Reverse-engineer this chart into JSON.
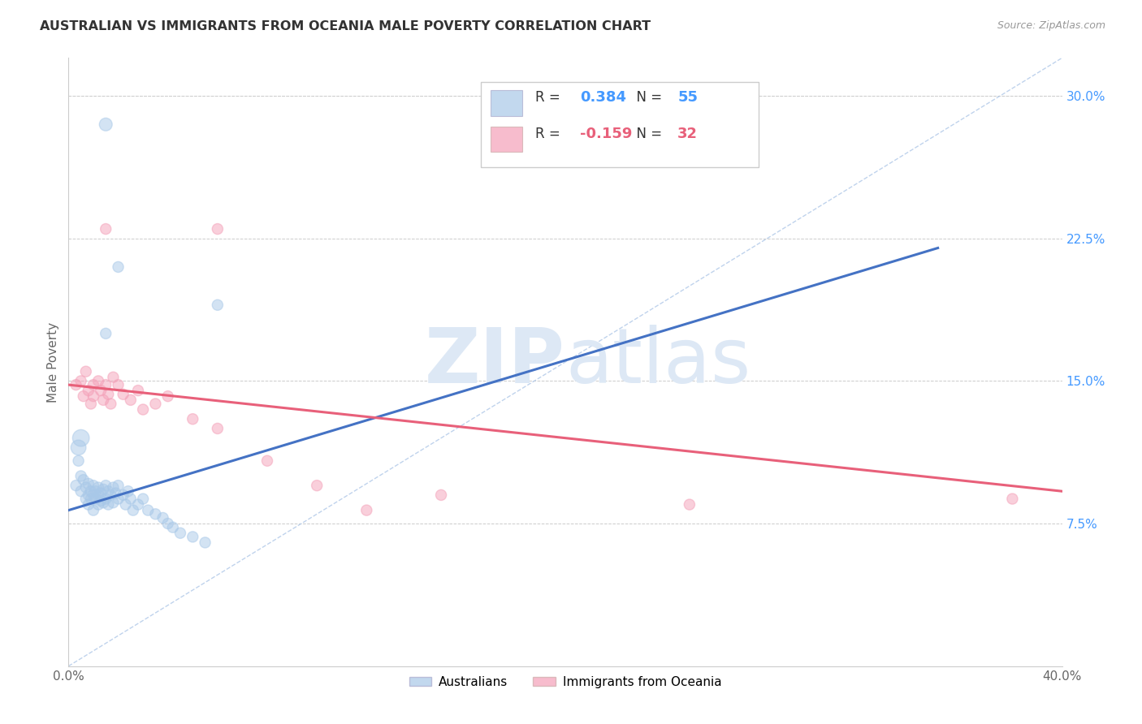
{
  "title": "AUSTRALIAN VS IMMIGRANTS FROM OCEANIA MALE POVERTY CORRELATION CHART",
  "source": "Source: ZipAtlas.com",
  "ylabel": "Male Poverty",
  "xlim": [
    0.0,
    0.4
  ],
  "ylim": [
    0.0,
    0.32
  ],
  "yticks_right": [
    0.075,
    0.15,
    0.225,
    0.3
  ],
  "yticklabels_right": [
    "7.5%",
    "15.0%",
    "22.5%",
    "30.0%"
  ],
  "legend_blue_r": "0.384",
  "legend_blue_n": "55",
  "legend_pink_r": "-0.159",
  "legend_pink_n": "32",
  "legend_label_blue": "Australians",
  "legend_label_pink": "Immigrants from Oceania",
  "blue_color": "#a8c8e8",
  "pink_color": "#f4a0b8",
  "trendline_blue_color": "#4472c4",
  "trendline_pink_color": "#e8607a",
  "diagonal_color": "#b0c8e8",
  "watermark_zip": "ZIP",
  "watermark_atlas": "atlas",
  "blue_scatter": [
    [
      0.003,
      0.095
    ],
    [
      0.005,
      0.1
    ],
    [
      0.005,
      0.092
    ],
    [
      0.006,
      0.098
    ],
    [
      0.007,
      0.088
    ],
    [
      0.007,
      0.094
    ],
    [
      0.008,
      0.09
    ],
    [
      0.008,
      0.096
    ],
    [
      0.008,
      0.085
    ],
    [
      0.009,
      0.092
    ],
    [
      0.009,
      0.088
    ],
    [
      0.01,
      0.095
    ],
    [
      0.01,
      0.09
    ],
    [
      0.01,
      0.082
    ],
    [
      0.011,
      0.092
    ],
    [
      0.011,
      0.088
    ],
    [
      0.012,
      0.094
    ],
    [
      0.012,
      0.09
    ],
    [
      0.012,
      0.085
    ],
    [
      0.013,
      0.091
    ],
    [
      0.013,
      0.087
    ],
    [
      0.014,
      0.093
    ],
    [
      0.014,
      0.086
    ],
    [
      0.015,
      0.095
    ],
    [
      0.015,
      0.088
    ],
    [
      0.016,
      0.092
    ],
    [
      0.016,
      0.085
    ],
    [
      0.017,
      0.09
    ],
    [
      0.018,
      0.094
    ],
    [
      0.018,
      0.086
    ],
    [
      0.019,
      0.091
    ],
    [
      0.02,
      0.095
    ],
    [
      0.02,
      0.088
    ],
    [
      0.022,
      0.09
    ],
    [
      0.023,
      0.085
    ],
    [
      0.024,
      0.092
    ],
    [
      0.025,
      0.088
    ],
    [
      0.026,
      0.082
    ],
    [
      0.028,
      0.085
    ],
    [
      0.03,
      0.088
    ],
    [
      0.032,
      0.082
    ],
    [
      0.035,
      0.08
    ],
    [
      0.038,
      0.078
    ],
    [
      0.04,
      0.075
    ],
    [
      0.042,
      0.073
    ],
    [
      0.045,
      0.07
    ],
    [
      0.05,
      0.068
    ],
    [
      0.055,
      0.065
    ],
    [
      0.004,
      0.108
    ],
    [
      0.004,
      0.115
    ],
    [
      0.005,
      0.12
    ],
    [
      0.015,
      0.175
    ],
    [
      0.02,
      0.21
    ],
    [
      0.015,
      0.285
    ],
    [
      0.06,
      0.19
    ]
  ],
  "pink_scatter": [
    [
      0.003,
      0.148
    ],
    [
      0.005,
      0.15
    ],
    [
      0.006,
      0.142
    ],
    [
      0.007,
      0.155
    ],
    [
      0.008,
      0.145
    ],
    [
      0.009,
      0.138
    ],
    [
      0.01,
      0.148
    ],
    [
      0.01,
      0.142
    ],
    [
      0.012,
      0.15
    ],
    [
      0.013,
      0.145
    ],
    [
      0.014,
      0.14
    ],
    [
      0.015,
      0.148
    ],
    [
      0.016,
      0.143
    ],
    [
      0.017,
      0.138
    ],
    [
      0.018,
      0.152
    ],
    [
      0.02,
      0.148
    ],
    [
      0.022,
      0.143
    ],
    [
      0.025,
      0.14
    ],
    [
      0.028,
      0.145
    ],
    [
      0.03,
      0.135
    ],
    [
      0.035,
      0.138
    ],
    [
      0.04,
      0.142
    ],
    [
      0.05,
      0.13
    ],
    [
      0.06,
      0.125
    ],
    [
      0.08,
      0.108
    ],
    [
      0.1,
      0.095
    ],
    [
      0.15,
      0.09
    ],
    [
      0.25,
      0.085
    ],
    [
      0.015,
      0.23
    ],
    [
      0.06,
      0.23
    ],
    [
      0.12,
      0.082
    ],
    [
      0.38,
      0.088
    ]
  ],
  "blue_trendline": [
    [
      0.0,
      0.082
    ],
    [
      0.35,
      0.22
    ]
  ],
  "pink_trendline": [
    [
      0.0,
      0.148
    ],
    [
      0.4,
      0.092
    ]
  ]
}
